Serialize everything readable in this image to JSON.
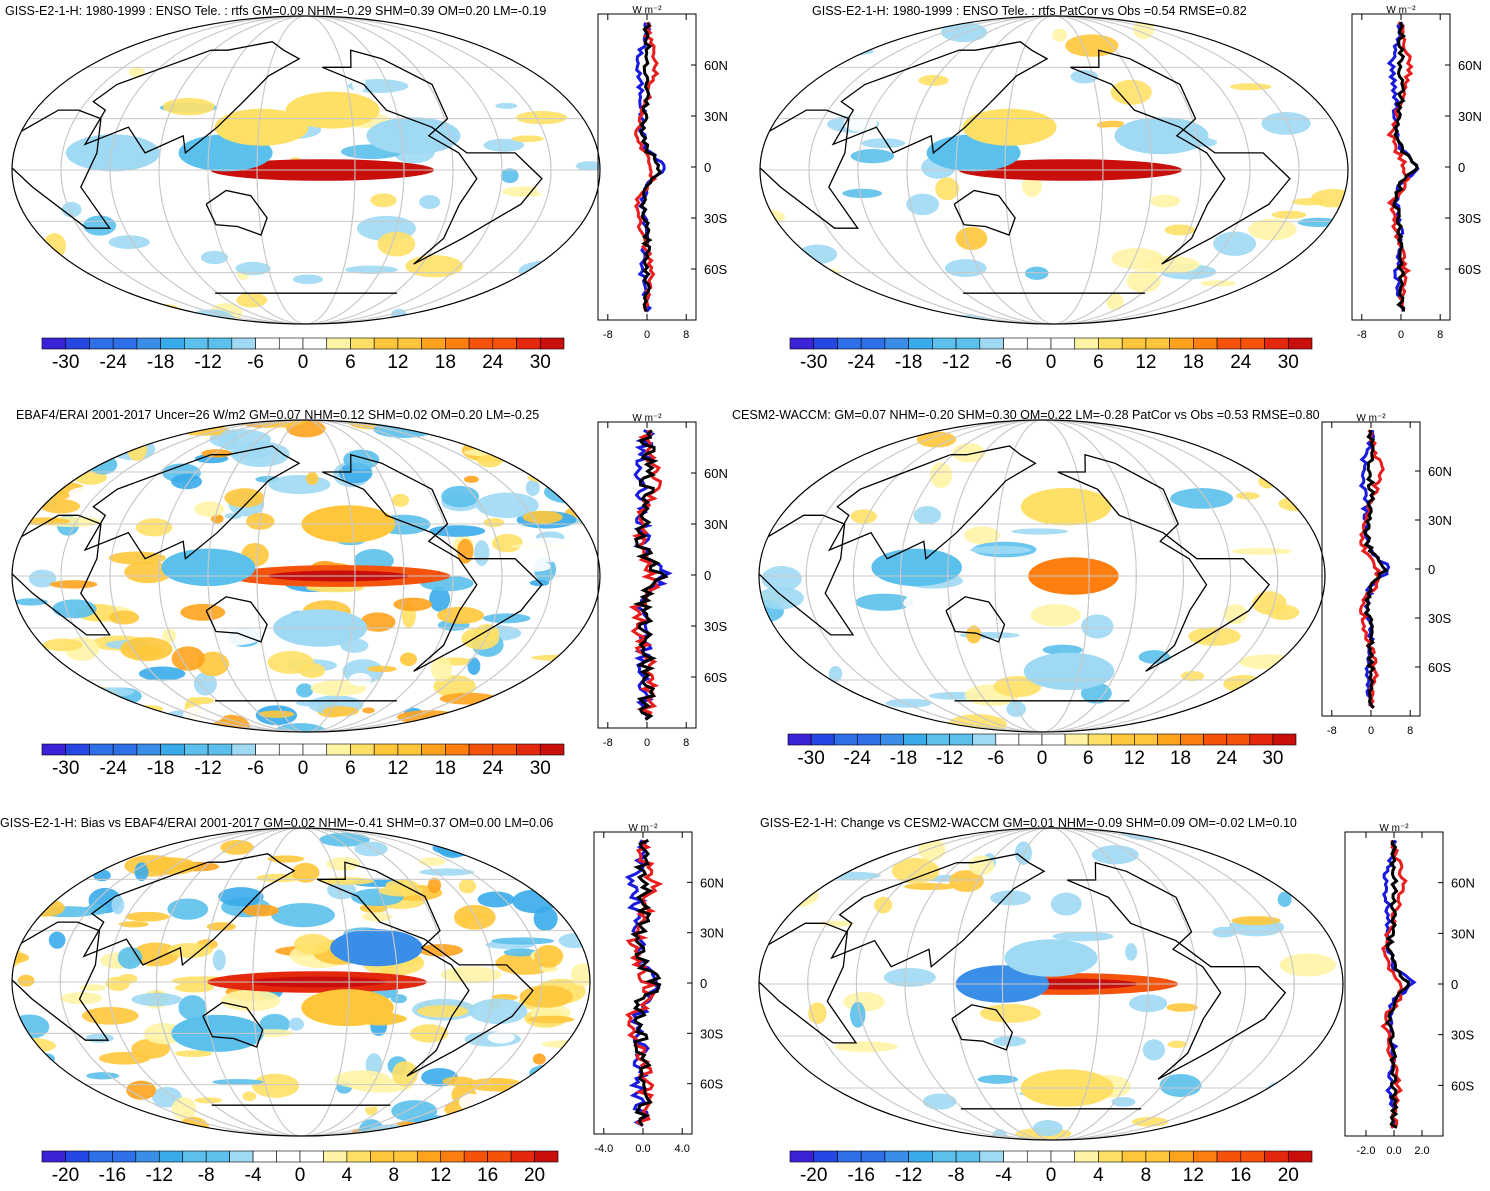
{
  "panels": [
    {
      "id": "p1",
      "title": "GISS-E2-1-H: 1980-1999 : ENSO Tele. : rtfs GM=0.09 NHM=-0.29 SHM=0.39 OM=0.20 LM=-0.19",
      "colorbar": {
        "labels": [
          "-30",
          "-24",
          "-18",
          "-12",
          "-6",
          "0",
          "6",
          "12",
          "18",
          "24",
          "30"
        ]
      },
      "profile": {
        "units": "W m⁻²",
        "xticks": [
          "-8",
          "0",
          "8"
        ],
        "xlim": [
          -10,
          10
        ],
        "lat_labels": [
          "60N",
          "30N",
          "0",
          "30S",
          "60S"
        ]
      }
    },
    {
      "id": "p2",
      "title": "GISS-E2-1-H: 1980-1999 : ENSO Tele. : rtfs PatCor vs Obs =0.54 RMSE=0.82",
      "colorbar": {
        "labels": [
          "-30",
          "-24",
          "-18",
          "-12",
          "-6",
          "0",
          "6",
          "12",
          "18",
          "24",
          "30"
        ]
      },
      "profile": {
        "units": "W m⁻²",
        "xticks": [
          "-8",
          "0",
          "8"
        ],
        "xlim": [
          -10,
          10
        ],
        "lat_labels": [
          "60N",
          "30N",
          "0",
          "30S",
          "60S"
        ]
      }
    },
    {
      "id": "p3",
      "title": "EBAF4/ERAI 2001-2017 Uncer=26 W/m2 GM=0.07 NHM=0.12 SHM=0.02 OM=0.20 LM=-0.25",
      "colorbar": {
        "labels": [
          "-30",
          "-24",
          "-18",
          "-12",
          "-6",
          "0",
          "6",
          "12",
          "18",
          "24",
          "30"
        ]
      },
      "profile": {
        "units": "W m⁻²",
        "xticks": [
          "-8",
          "0",
          "8"
        ],
        "xlim": [
          -10,
          10
        ],
        "lat_labels": [
          "60N",
          "30N",
          "0",
          "30S",
          "60S"
        ]
      }
    },
    {
      "id": "p4",
      "title": "CESM2-WACCM: GM=0.07 NHM=-0.20 SHM=0.30 OM=0.22 LM=-0.28 PatCor vs Obs =0.53 RMSE=0.80",
      "colorbar": {
        "labels": [
          "-30",
          "-24",
          "-18",
          "-12",
          "-6",
          "0",
          "6",
          "12",
          "18",
          "24",
          "30"
        ]
      },
      "profile": {
        "units": "W m⁻²",
        "xticks": [
          "-8",
          "0",
          "8"
        ],
        "xlim": [
          -10,
          10
        ],
        "lat_labels": [
          "60N",
          "30N",
          "0",
          "30S",
          "60S"
        ]
      }
    },
    {
      "id": "p5",
      "title": "GISS-E2-1-H: Bias vs EBAF4/ERAI 2001-2017 GM=0.02 NHM=-0.41 SHM=0.37 OM=0.00 LM=0.06",
      "colorbar": {
        "labels": [
          "-20",
          "-16",
          "-12",
          "-8",
          "-4",
          "0",
          "4",
          "8",
          "12",
          "16",
          "20"
        ]
      },
      "profile": {
        "units": "W m⁻²",
        "xticks": [
          "-4.0",
          "0.0",
          "4.0"
        ],
        "xlim": [
          -5,
          5
        ],
        "lat_labels": [
          "60N",
          "30N",
          "0",
          "30S",
          "60S"
        ]
      }
    },
    {
      "id": "p6",
      "title": "GISS-E2-1-H: Change vs CESM2-WACCM GM=0.01 NHM=-0.09 SHM=0.09 OM=-0.02 LM=0.10",
      "colorbar": {
        "labels": [
          "-20",
          "-16",
          "-12",
          "-8",
          "-4",
          "0",
          "4",
          "8",
          "12",
          "16",
          "20"
        ]
      },
      "profile": {
        "units": "W m⁻²",
        "xticks": [
          "-2.0",
          "0.0",
          "2.0"
        ],
        "xlim": [
          -3.5,
          3.5
        ],
        "lat_labels": [
          "60N",
          "30N",
          "0",
          "30S",
          "60S"
        ]
      }
    }
  ],
  "chart_data": [
    {
      "type": "heatmap",
      "title": "GISS-E2-1-H: 1980-1999 : ENSO Tele. : rtfs GM=0.09 NHM=-0.29 SHM=0.39 OM=0.20 LM=-0.19",
      "color_range": [
        -30,
        30
      ],
      "colorbar_ticks": [
        -30,
        -24,
        -18,
        -12,
        -6,
        0,
        6,
        12,
        18,
        24,
        30
      ],
      "features": [
        {
          "lon": 190,
          "lat": 0,
          "value": 30
        },
        {
          "lon": 130,
          "lat": 10,
          "value": -10
        },
        {
          "lon": 150,
          "lat": 25,
          "value": 8
        },
        {
          "lon": 200,
          "lat": 35,
          "value": 6
        },
        {
          "lon": 250,
          "lat": 20,
          "value": -8
        },
        {
          "lon": 60,
          "lat": 10,
          "value": -6
        }
      ]
    },
    {
      "type": "line",
      "ylabel": "latitude",
      "ylim": [
        -90,
        90
      ],
      "xlim": [
        -10,
        10
      ],
      "series": [
        {
          "values_lat": [
            -80,
            -60,
            -40,
            -20,
            -10,
            0,
            10,
            20,
            40,
            60,
            80
          ],
          "values": [
            0,
            -1,
            0,
            -1,
            0,
            4,
            0,
            -1,
            -1,
            -2,
            0
          ]
        },
        {
          "values_lat": [
            -80,
            -60,
            -40,
            -20,
            -10,
            0,
            10,
            20,
            40,
            60,
            80
          ],
          "values": [
            0,
            1,
            -1,
            -2,
            1,
            1,
            -1,
            -2,
            0,
            2,
            0
          ]
        },
        {
          "values_lat": [
            -80,
            -60,
            -40,
            -20,
            -10,
            0,
            10,
            20,
            40,
            60,
            80
          ],
          "values": [
            0,
            0,
            0,
            -1,
            0,
            3,
            0,
            -1,
            0,
            0,
            0
          ]
        }
      ]
    },
    {
      "type": "heatmap",
      "title": "GISS-E2-1-H: 1980-1999 : ENSO Tele. : rtfs PatCor vs Obs =0.54 RMSE=0.82",
      "color_range": [
        -30,
        30
      ],
      "colorbar_ticks": [
        -30,
        -24,
        -18,
        -12,
        -6,
        0,
        6,
        12,
        18,
        24,
        30
      ],
      "features": [
        {
          "lon": 190,
          "lat": 0,
          "value": 30
        },
        {
          "lon": 130,
          "lat": 10,
          "value": -10
        },
        {
          "lon": 150,
          "lat": 25,
          "value": 8
        },
        {
          "lon": 250,
          "lat": 20,
          "value": -8
        }
      ]
    },
    {
      "type": "heatmap",
      "title": "EBAF4/ERAI 2001-2017 Uncer=26 W/m2 GM=0.07 NHM=0.12 SHM=0.02 OM=0.20 LM=-0.25",
      "color_range": [
        -30,
        30
      ],
      "colorbar_ticks": [
        -30,
        -24,
        -18,
        -12,
        -6,
        0,
        6,
        12,
        18,
        24,
        30
      ],
      "features": [
        {
          "lon": 200,
          "lat": 0,
          "value": 24
        },
        {
          "lon": 120,
          "lat": 5,
          "value": -12
        },
        {
          "lon": 210,
          "lat": 30,
          "value": 10
        },
        {
          "lon": 190,
          "lat": -30,
          "value": -8
        }
      ]
    },
    {
      "type": "heatmap",
      "title": "CESM2-WACCM: GM=0.07 NHM=-0.20 SHM=0.30 OM=0.22 LM=-0.28 PatCor vs Obs =0.53 RMSE=0.80",
      "color_range": [
        -30,
        30
      ],
      "colorbar_ticks": [
        -30,
        -24,
        -18,
        -12,
        -6,
        0,
        6,
        12,
        18,
        24,
        30
      ],
      "features": [
        {
          "lon": 200,
          "lat": 0,
          "value": 18
        },
        {
          "lon": 100,
          "lat": 5,
          "value": -10
        },
        {
          "lon": 200,
          "lat": 40,
          "value": 6
        },
        {
          "lon": 210,
          "lat": -55,
          "value": -6
        }
      ]
    },
    {
      "type": "heatmap",
      "title": "GISS-E2-1-H: Bias vs EBAF4/ERAI 2001-2017 GM=0.02 NHM=-0.41 SHM=0.37 OM=0.00 LM=0.06",
      "color_range": [
        -20,
        20
      ],
      "colorbar_ticks": [
        -20,
        -16,
        -12,
        -8,
        -4,
        0,
        4,
        8,
        12,
        16,
        20
      ],
      "features": [
        {
          "lon": 190,
          "lat": 0,
          "value": 18
        },
        {
          "lon": 230,
          "lat": 20,
          "value": -12
        },
        {
          "lon": 210,
          "lat": -15,
          "value": 8
        },
        {
          "lon": 120,
          "lat": -30,
          "value": -8
        }
      ]
    },
    {
      "type": "heatmap",
      "title": "GISS-E2-1-H: Change vs CESM2-WACCM GM=0.01 NHM=-0.09 SHM=0.09 OM=-0.02 LM=0.10",
      "color_range": [
        -20,
        20
      ],
      "colorbar_ticks": [
        -20,
        -16,
        -12,
        -8,
        -4,
        0,
        4,
        8,
        12,
        16,
        20
      ],
      "features": [
        {
          "lon": 190,
          "lat": 0,
          "value": 16
        },
        {
          "lon": 150,
          "lat": 0,
          "value": -12
        },
        {
          "lon": 180,
          "lat": 15,
          "value": -6
        },
        {
          "lon": 200,
          "lat": -60,
          "value": 6
        }
      ]
    }
  ]
}
